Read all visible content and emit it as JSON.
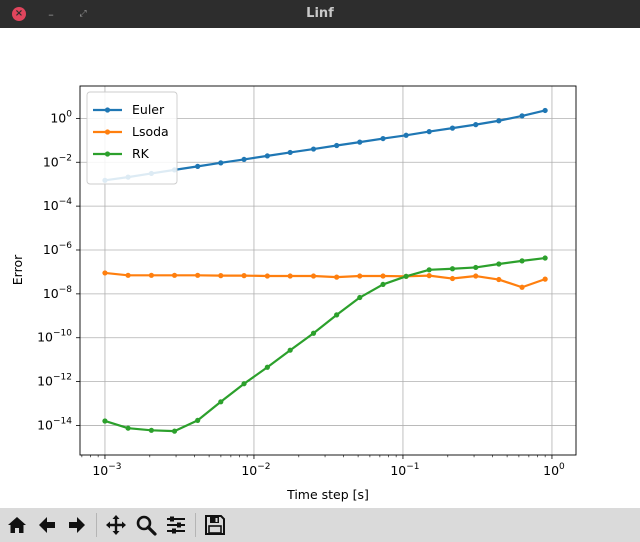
{
  "window": {
    "title": "Linf",
    "close_glyph": "×",
    "minimize_glyph": "–",
    "maximize_glyph": "⤢"
  },
  "toolbar": {
    "tools": [
      {
        "name": "home-icon",
        "label": "Home"
      },
      {
        "name": "back-icon",
        "label": "Back"
      },
      {
        "name": "forward-icon",
        "label": "Forward"
      },
      {
        "name": "pan-icon",
        "label": "Pan"
      },
      {
        "name": "zoom-icon",
        "label": "Zoom"
      },
      {
        "name": "configure-subplots-icon",
        "label": "Subplots"
      },
      {
        "name": "save-icon",
        "label": "Save"
      }
    ]
  },
  "chart_data": {
    "type": "line",
    "title": "",
    "xlabel": "Time step [s]",
    "ylabel": "Error",
    "xscale": "log",
    "yscale": "log",
    "xlim": [
      0.00068,
      1.45
    ],
    "ylim": [
      4.5e-16,
      30
    ],
    "grid": true,
    "legend_position": "top-left",
    "x_ticks": [
      {
        "exp": -3,
        "label_base": "10",
        "label_exp": "−3"
      },
      {
        "exp": -2,
        "label_base": "10",
        "label_exp": "−2"
      },
      {
        "exp": -1,
        "label_base": "10",
        "label_exp": "−1"
      },
      {
        "exp": 0,
        "label_base": "10",
        "label_exp": "0"
      }
    ],
    "y_ticks": [
      {
        "exp": 0,
        "label_base": "10",
        "label_exp": "0"
      },
      {
        "exp": -2,
        "label_base": "10",
        "label_exp": "−2"
      },
      {
        "exp": -4,
        "label_base": "10",
        "label_exp": "−4"
      },
      {
        "exp": -6,
        "label_base": "10",
        "label_exp": "−6"
      },
      {
        "exp": -8,
        "label_base": "10",
        "label_exp": "−8"
      },
      {
        "exp": -10,
        "label_base": "10",
        "label_exp": "−10"
      },
      {
        "exp": -12,
        "label_base": "10",
        "label_exp": "−12"
      },
      {
        "exp": -14,
        "label_base": "10",
        "label_exp": "−14"
      }
    ],
    "x": [
      0.001,
      0.00143,
      0.00205,
      0.00293,
      0.00419,
      0.00599,
      0.00858,
      0.0123,
      0.0175,
      0.0251,
      0.0359,
      0.0513,
      0.0735,
      0.105,
      0.15,
      0.215,
      0.308,
      0.44,
      0.63,
      0.9
    ],
    "series": [
      {
        "name": "Euler",
        "color": "#1f77b4",
        "values": [
          0.0015,
          0.0021,
          0.0031,
          0.0045,
          0.0065,
          0.0094,
          0.0135,
          0.0195,
          0.028,
          0.04,
          0.058,
          0.083,
          0.12,
          0.17,
          0.25,
          0.36,
          0.52,
          0.78,
          1.3,
          2.3
        ]
      },
      {
        "name": "Lsoda",
        "color": "#ff7f0e",
        "values": [
          9e-08,
          7e-08,
          7e-08,
          7e-08,
          7e-08,
          6.8e-08,
          6.8e-08,
          6.5e-08,
          6.5e-08,
          6.5e-08,
          5.8e-08,
          6.5e-08,
          6.5e-08,
          6.3e-08,
          6.8e-08,
          5e-08,
          6.5e-08,
          4.5e-08,
          2e-08,
          4.7e-08
        ]
      },
      {
        "name": "RK",
        "color": "#2ca02c",
        "values": [
          1.6e-14,
          7.5e-15,
          6e-15,
          5.5e-15,
          1.7e-14,
          1.2e-13,
          8e-13,
          4.5e-12,
          2.7e-11,
          1.6e-10,
          1.1e-09,
          6.8e-09,
          2.7e-08,
          6.3e-08,
          1.25e-07,
          1.4e-07,
          1.6e-07,
          2.3e-07,
          3.2e-07,
          4.3e-07
        ]
      }
    ]
  }
}
